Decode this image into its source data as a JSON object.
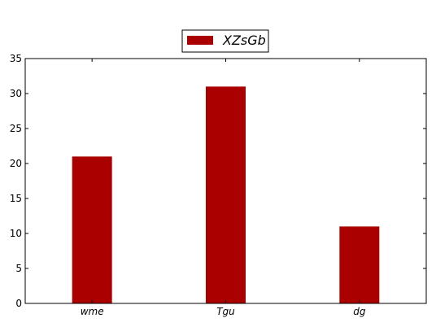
{
  "chart_data": {
    "type": "bar",
    "categories": [
      "wme",
      "Tgu",
      "dg"
    ],
    "series": [
      {
        "name": "XZsGb",
        "values": [
          21,
          31,
          11
        ]
      }
    ],
    "title": "",
    "xlabel": "",
    "ylabel": "",
    "ylim": [
      0,
      35
    ],
    "yticks": [
      0,
      5,
      10,
      15,
      20,
      25,
      30,
      35
    ],
    "grid": false,
    "legend_position": "top-center",
    "bar_color": "#aa0000"
  }
}
